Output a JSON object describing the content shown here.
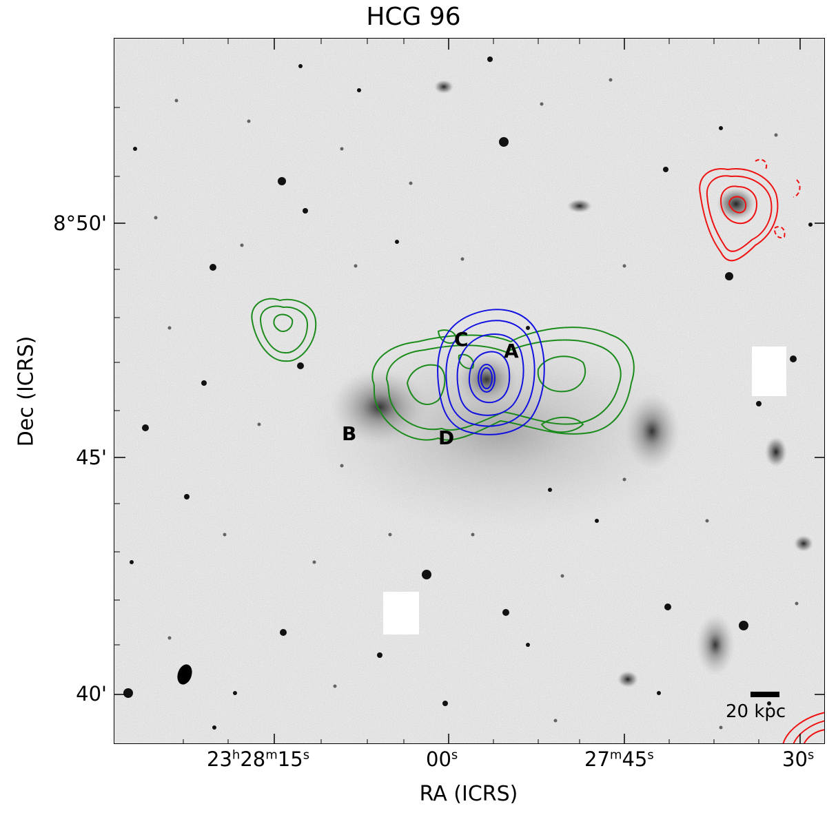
{
  "title": "HCG 96",
  "xlabel": "RA (ICRS)",
  "ylabel": "Dec (ICRS)",
  "ra_ticks": [
    {
      "main": "23",
      "h": "h",
      "m_val": "28",
      "m": "m",
      "s_val": "15",
      "s": "s"
    },
    {
      "s_val": "00",
      "s": "s"
    },
    {
      "m_val": "27",
      "m": "m",
      "s_val": "45",
      "s": "s"
    },
    {
      "s_val": "30",
      "s": "s"
    }
  ],
  "dec_ticks": [
    "8°50'",
    "45'",
    "40'"
  ],
  "galaxy_labels": [
    "A",
    "B",
    "C",
    "D"
  ],
  "scalebar_label": "20 kpc",
  "colors": {
    "contour_green": "#1a8a1a",
    "contour_blue": "#1010e0",
    "contour_red": "#ee1111",
    "background": "#d9d9d9"
  }
}
